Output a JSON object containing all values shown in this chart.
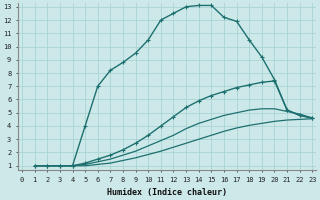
{
  "xlabel": "Humidex (Indice chaleur)",
  "xlim": [
    -0.3,
    23.3
  ],
  "ylim": [
    0.7,
    13.3
  ],
  "xticks": [
    0,
    1,
    2,
    3,
    4,
    5,
    6,
    7,
    8,
    9,
    10,
    11,
    12,
    13,
    14,
    15,
    16,
    17,
    18,
    19,
    20,
    21,
    22,
    23
  ],
  "yticks": [
    1,
    2,
    3,
    4,
    5,
    6,
    7,
    8,
    9,
    10,
    11,
    12,
    13
  ],
  "bg_color": "#cce8e8",
  "grid_color": "#aad4d4",
  "line_color": "#1e7070",
  "curves": [
    {
      "x": [
        1,
        2,
        3,
        4,
        5,
        6,
        7,
        8,
        9,
        10,
        11,
        12,
        13,
        14,
        15,
        16,
        17,
        18,
        19,
        20,
        21,
        22,
        23
      ],
      "y": [
        1,
        1,
        1,
        1,
        4,
        7,
        8.2,
        8.8,
        9.5,
        10.5,
        12.0,
        12.5,
        13.0,
        13.1,
        13.1,
        12.2,
        11.9,
        10.5,
        9.2,
        7.5,
        5.2,
        4.8,
        4.6
      ],
      "marker": true,
      "lw": 1.0
    },
    {
      "x": [
        1,
        2,
        3,
        4,
        5,
        6,
        7,
        8,
        9,
        10,
        11,
        12,
        13,
        14,
        15,
        16,
        17,
        18,
        19,
        20,
        21,
        22,
        23
      ],
      "y": [
        1,
        1,
        1,
        1,
        1.2,
        1.5,
        1.8,
        2.2,
        2.7,
        3.3,
        4.0,
        4.7,
        5.4,
        5.9,
        6.3,
        6.6,
        6.9,
        7.1,
        7.3,
        7.4,
        5.2,
        4.8,
        4.6
      ],
      "marker": true,
      "lw": 1.0
    },
    {
      "x": [
        1,
        2,
        3,
        4,
        5,
        6,
        7,
        8,
        9,
        10,
        11,
        12,
        13,
        14,
        15,
        16,
        17,
        18,
        19,
        20,
        21,
        22,
        23
      ],
      "y": [
        1,
        1,
        1,
        1,
        1.1,
        1.3,
        1.5,
        1.8,
        2.1,
        2.5,
        2.9,
        3.3,
        3.8,
        4.2,
        4.5,
        4.8,
        5.0,
        5.2,
        5.3,
        5.3,
        5.1,
        4.9,
        4.6
      ],
      "marker": false,
      "lw": 0.9
    },
    {
      "x": [
        1,
        2,
        3,
        4,
        5,
        6,
        7,
        8,
        9,
        10,
        11,
        12,
        13,
        14,
        15,
        16,
        17,
        18,
        19,
        20,
        21,
        22,
        23
      ],
      "y": [
        1,
        1,
        1,
        1,
        1.0,
        1.1,
        1.2,
        1.4,
        1.6,
        1.85,
        2.1,
        2.4,
        2.7,
        3.0,
        3.3,
        3.6,
        3.85,
        4.05,
        4.2,
        4.35,
        4.45,
        4.5,
        4.55
      ],
      "marker": false,
      "lw": 0.9
    }
  ]
}
